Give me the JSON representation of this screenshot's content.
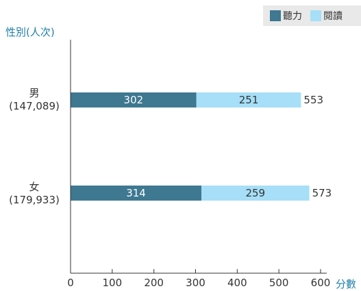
{
  "chart_data": {
    "type": "bar",
    "orientation": "horizontal",
    "stacked": true,
    "ylabel": "性別(人次)",
    "xlabel": "分數",
    "categories": [
      {
        "name": "男",
        "count": "(147,089)"
      },
      {
        "name": "女",
        "count": "(179,933)"
      }
    ],
    "series": [
      {
        "name": "聽力",
        "color": "#3e7891",
        "values": [
          302,
          314
        ]
      },
      {
        "name": "閱讀",
        "color": "#a6dff7",
        "values": [
          251,
          259
        ]
      }
    ],
    "totals": [
      553,
      573
    ],
    "xlim": [
      0,
      600
    ],
    "xticks": [
      0,
      100,
      200,
      300,
      400,
      500,
      600
    ],
    "legend_position": "top-right",
    "grid": false
  }
}
